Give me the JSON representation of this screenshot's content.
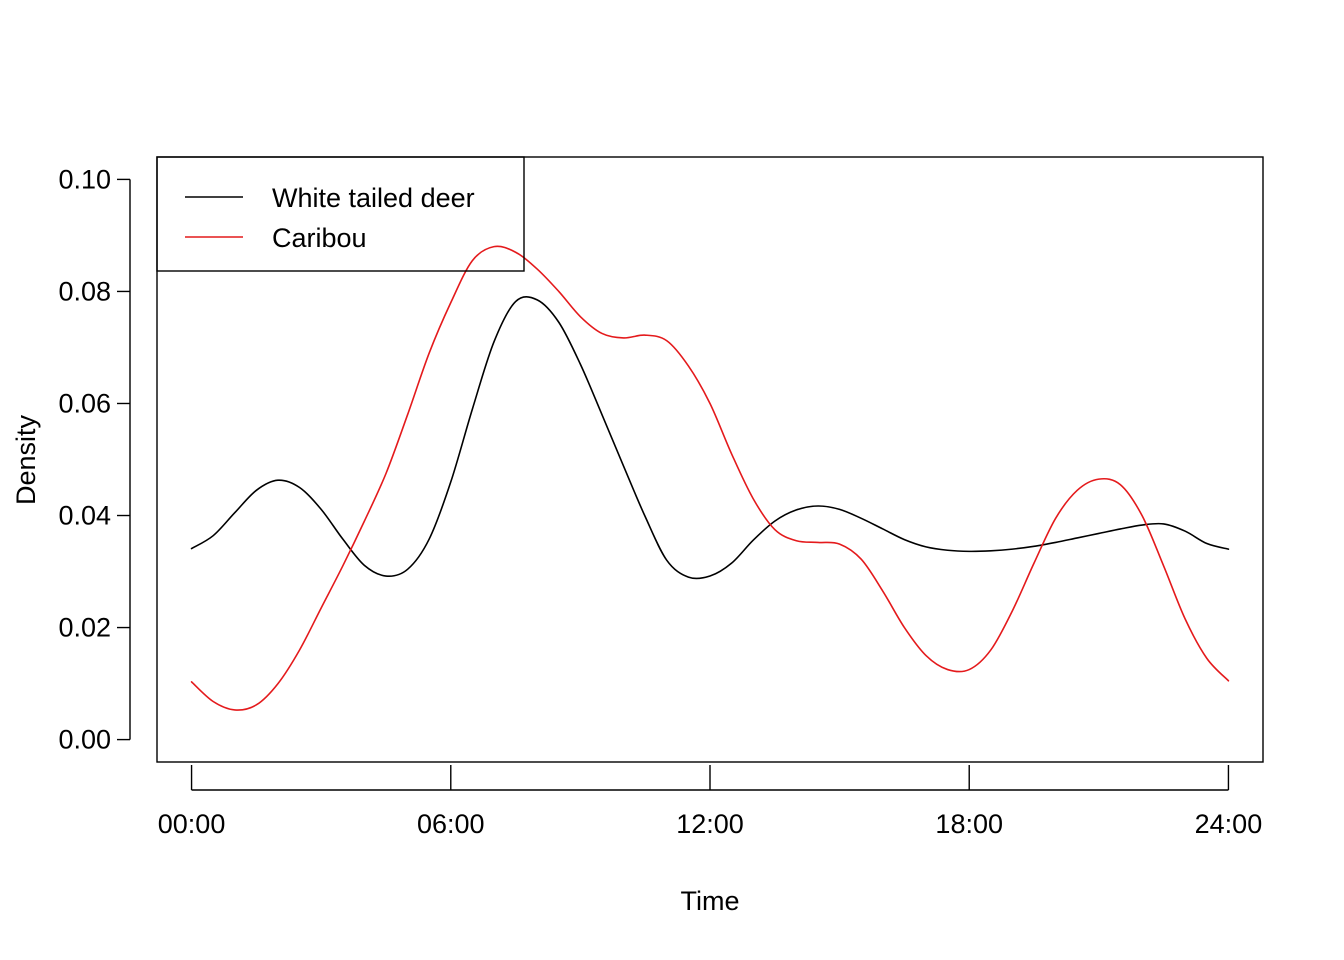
{
  "chart_data": {
    "type": "line",
    "xlabel": "Time",
    "ylabel": "Density",
    "xlim": [
      -0.8,
      24.8
    ],
    "ylim": [
      -0.004,
      0.104
    ],
    "x_ticks": [
      0,
      6,
      12,
      18,
      24
    ],
    "x_tick_labels": [
      "00:00",
      "06:00",
      "12:00",
      "18:00",
      "24:00"
    ],
    "y_ticks": [
      0.0,
      0.02,
      0.04,
      0.06,
      0.08,
      0.1
    ],
    "y_tick_labels": [
      "0.00",
      "0.02",
      "0.04",
      "0.06",
      "0.08",
      "0.10"
    ],
    "legend_position": "top-left",
    "series": [
      {
        "name": "White tailed deer",
        "color": "#000000",
        "x": [
          0,
          0.5,
          1,
          1.5,
          2,
          2.5,
          3,
          3.5,
          4,
          4.5,
          5,
          5.5,
          6,
          6.5,
          7,
          7.5,
          8,
          8.5,
          9,
          9.5,
          10,
          10.5,
          11,
          11.5,
          12,
          12.5,
          13,
          13.5,
          14,
          14.5,
          15,
          15.5,
          16,
          16.5,
          17,
          17.5,
          18,
          18.5,
          19,
          19.5,
          20,
          20.5,
          21,
          21.5,
          22,
          22.5,
          23,
          23.5,
          24
        ],
        "y": [
          0.0341,
          0.0364,
          0.0405,
          0.0445,
          0.0463,
          0.045,
          0.0411,
          0.0358,
          0.0311,
          0.0292,
          0.0304,
          0.0358,
          0.046,
          0.059,
          0.071,
          0.0782,
          0.0785,
          0.0745,
          0.067,
          0.058,
          0.0488,
          0.0398,
          0.032,
          0.029,
          0.0292,
          0.0315,
          0.0356,
          0.039,
          0.041,
          0.0417,
          0.0411,
          0.0395,
          0.0376,
          0.0357,
          0.0344,
          0.0338,
          0.0336,
          0.0337,
          0.034,
          0.0345,
          0.0352,
          0.036,
          0.0368,
          0.0376,
          0.0383,
          0.0385,
          0.0372,
          0.035,
          0.034
        ]
      },
      {
        "name": "Caribou",
        "color": "#e41a1c",
        "x": [
          0,
          0.5,
          1,
          1.5,
          2,
          2.5,
          3,
          3.5,
          4,
          4.5,
          5,
          5.5,
          6,
          6.5,
          7,
          7.5,
          8,
          8.5,
          9,
          9.5,
          10,
          10.5,
          11,
          11.5,
          12,
          12.5,
          13,
          13.5,
          14,
          14.5,
          15,
          15.5,
          16,
          16.5,
          17,
          17.5,
          18,
          18.5,
          19,
          19.5,
          20,
          20.5,
          21,
          21.5,
          22,
          22.5,
          23,
          23.5,
          24
        ],
        "y": [
          0.0103,
          0.0068,
          0.0053,
          0.0062,
          0.01,
          0.016,
          0.0235,
          0.031,
          0.039,
          0.0475,
          0.058,
          0.069,
          0.078,
          0.0855,
          0.088,
          0.087,
          0.084,
          0.08,
          0.0755,
          0.0725,
          0.0717,
          0.0722,
          0.0712,
          0.0667,
          0.06,
          0.051,
          0.043,
          0.0375,
          0.0355,
          0.0352,
          0.0349,
          0.0322,
          0.0265,
          0.02,
          0.015,
          0.0125,
          0.0125,
          0.016,
          0.023,
          0.0315,
          0.0395,
          0.0445,
          0.0465,
          0.0455,
          0.04,
          0.031,
          0.0215,
          0.0145,
          0.0105
        ]
      }
    ]
  }
}
